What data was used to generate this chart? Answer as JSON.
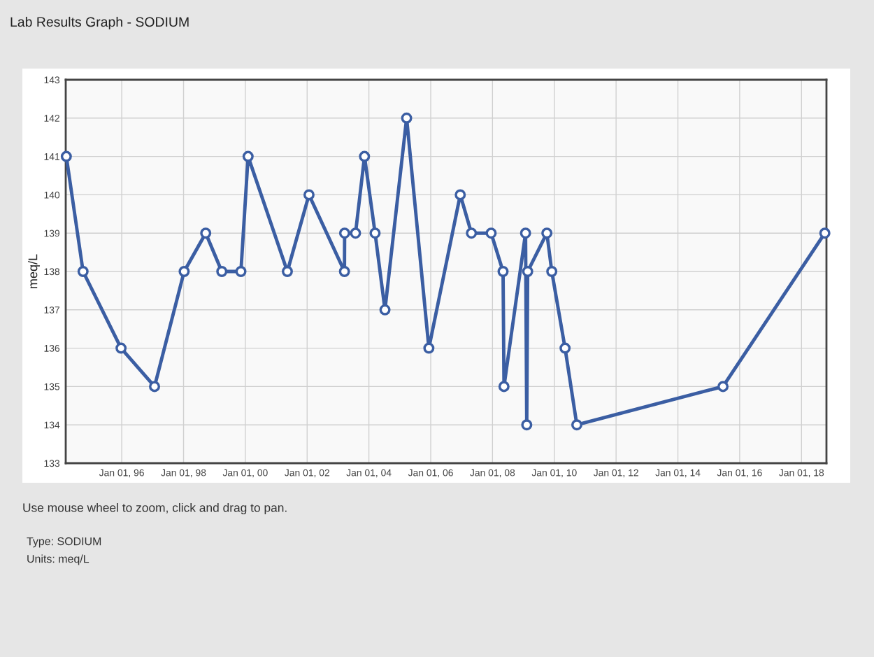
{
  "chart_data": {
    "type": "line",
    "title": "Lab Results Graph - SODIUM",
    "ylabel": "meq/L",
    "annotations": [
      "Use mouse wheel to zoom, click and drag to pan.",
      "Type: SODIUM",
      "Units: meq/L"
    ],
    "x": [
      "1994-03-17",
      "1994-10-01",
      "1995-12-24",
      "1997-01-23",
      "1998-01-08",
      "1998-09-20",
      "1999-03-29",
      "1999-11-10",
      "2000-02-03",
      "2001-05-12",
      "2002-01-23",
      "2003-03-18",
      "2003-03-20",
      "2003-07-27",
      "2003-11-10",
      "2004-03-14",
      "2004-07-09",
      "2005-03-22",
      "2005-12-10",
      "2006-12-16",
      "2007-04-27",
      "2007-12-16",
      "2008-05-05",
      "2008-05-16",
      "2009-01-26",
      "2009-02-09",
      "2009-02-20",
      "2009-10-05",
      "2009-12-02",
      "2010-05-08",
      "2010-09-24",
      "2015-06-18",
      "2018-10-04"
    ],
    "series": [
      {
        "color": "#3b5ea3",
        "values": [
          141,
          138,
          136,
          135,
          138,
          139,
          138,
          138,
          141,
          138,
          140,
          138,
          139,
          139,
          141,
          139,
          137,
          142,
          136,
          140,
          139,
          139,
          138,
          135,
          139,
          134,
          138,
          139,
          138,
          136,
          134,
          135,
          139
        ]
      }
    ],
    "xlim": [
      "1994-03-10",
      "2018-10-23"
    ],
    "xticks": [
      {
        "value": "1996-01-01",
        "label": "Jan 01, 96"
      },
      {
        "value": "1998-01-01",
        "label": "Jan 01, 98"
      },
      {
        "value": "2000-01-01",
        "label": "Jan 01, 00"
      },
      {
        "value": "2002-01-01",
        "label": "Jan 01, 02"
      },
      {
        "value": "2004-01-01",
        "label": "Jan 01, 04"
      },
      {
        "value": "2006-01-01",
        "label": "Jan 01, 06"
      },
      {
        "value": "2008-01-01",
        "label": "Jan 01, 08"
      },
      {
        "value": "2010-01-01",
        "label": "Jan 01, 10"
      },
      {
        "value": "2012-01-01",
        "label": "Jan 01, 12"
      },
      {
        "value": "2014-01-01",
        "label": "Jan 01, 14"
      },
      {
        "value": "2016-01-01",
        "label": "Jan 01, 16"
      },
      {
        "value": "2018-01-01",
        "label": "Jan 01, 18"
      }
    ],
    "ylim": [
      133,
      143
    ],
    "yticks": [
      133,
      134,
      135,
      136,
      137,
      138,
      139,
      140,
      141,
      142,
      143
    ],
    "grid": true,
    "marker": "circle",
    "line_style": "solid"
  }
}
